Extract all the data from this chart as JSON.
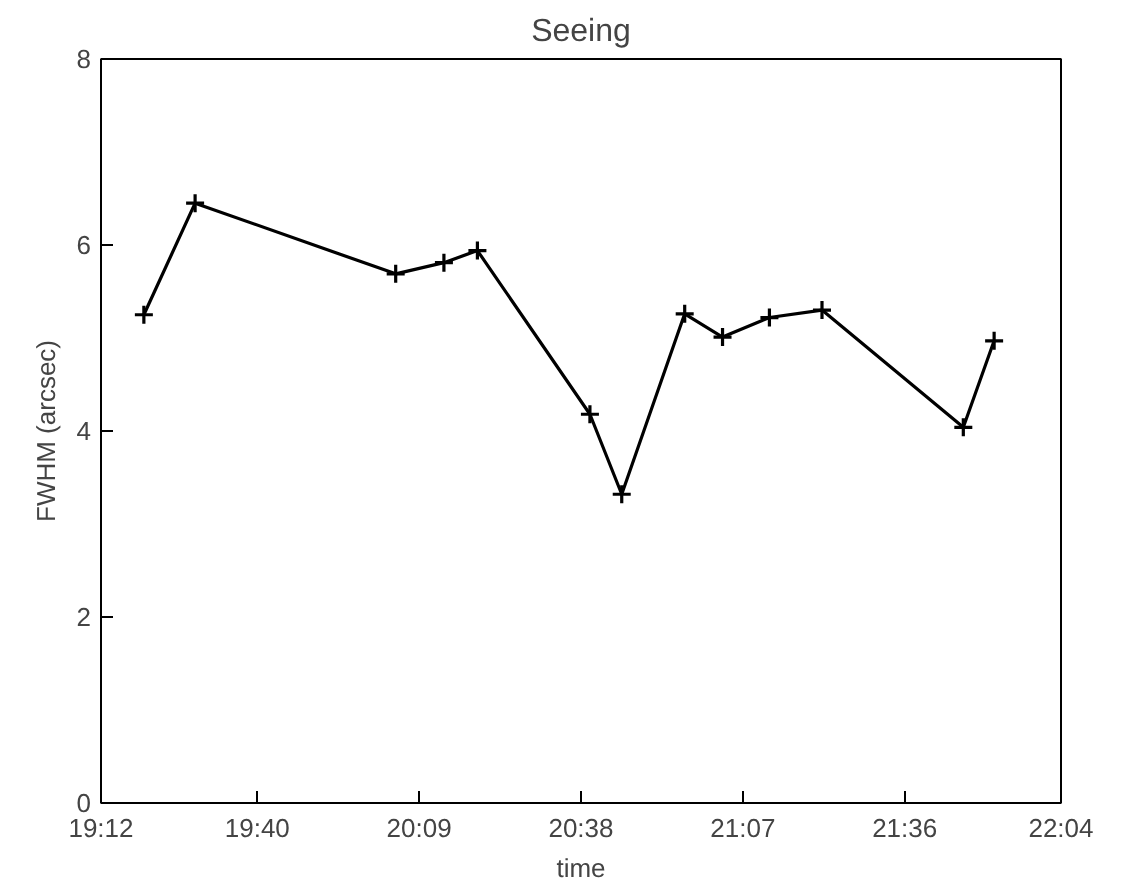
{
  "chart_data": {
    "type": "line",
    "title": "Seeing",
    "xlabel": "time",
    "ylabel": "FWHM (arcsec)",
    "x": [
      19.328,
      19.481,
      20.08,
      20.224,
      20.324,
      20.66,
      20.755,
      20.943,
      21.056,
      21.196,
      21.353,
      21.775,
      21.867
    ],
    "series": [
      {
        "color": "#000000",
        "values": [
          5.25,
          6.45,
          5.69,
          5.81,
          5.94,
          4.18,
          3.32,
          5.26,
          5.01,
          5.22,
          5.3,
          4.04,
          4.97
        ]
      }
    ],
    "xlim": [
      19.2,
      22.0667
    ],
    "ylim": [
      0,
      8
    ],
    "xticks": [
      {
        "value": 19.2,
        "label": "19:12"
      },
      {
        "value": 19.6667,
        "label": "19:40"
      },
      {
        "value": 20.15,
        "label": "20:09"
      },
      {
        "value": 20.6333,
        "label": "20:38"
      },
      {
        "value": 21.1167,
        "label": "21:07"
      },
      {
        "value": 21.6,
        "label": "21:36"
      },
      {
        "value": 22.0667,
        "label": "22:04"
      }
    ],
    "yticks": [
      0,
      2,
      4,
      6,
      8
    ],
    "grid": false,
    "marker": "cross",
    "line_style": "solid"
  }
}
